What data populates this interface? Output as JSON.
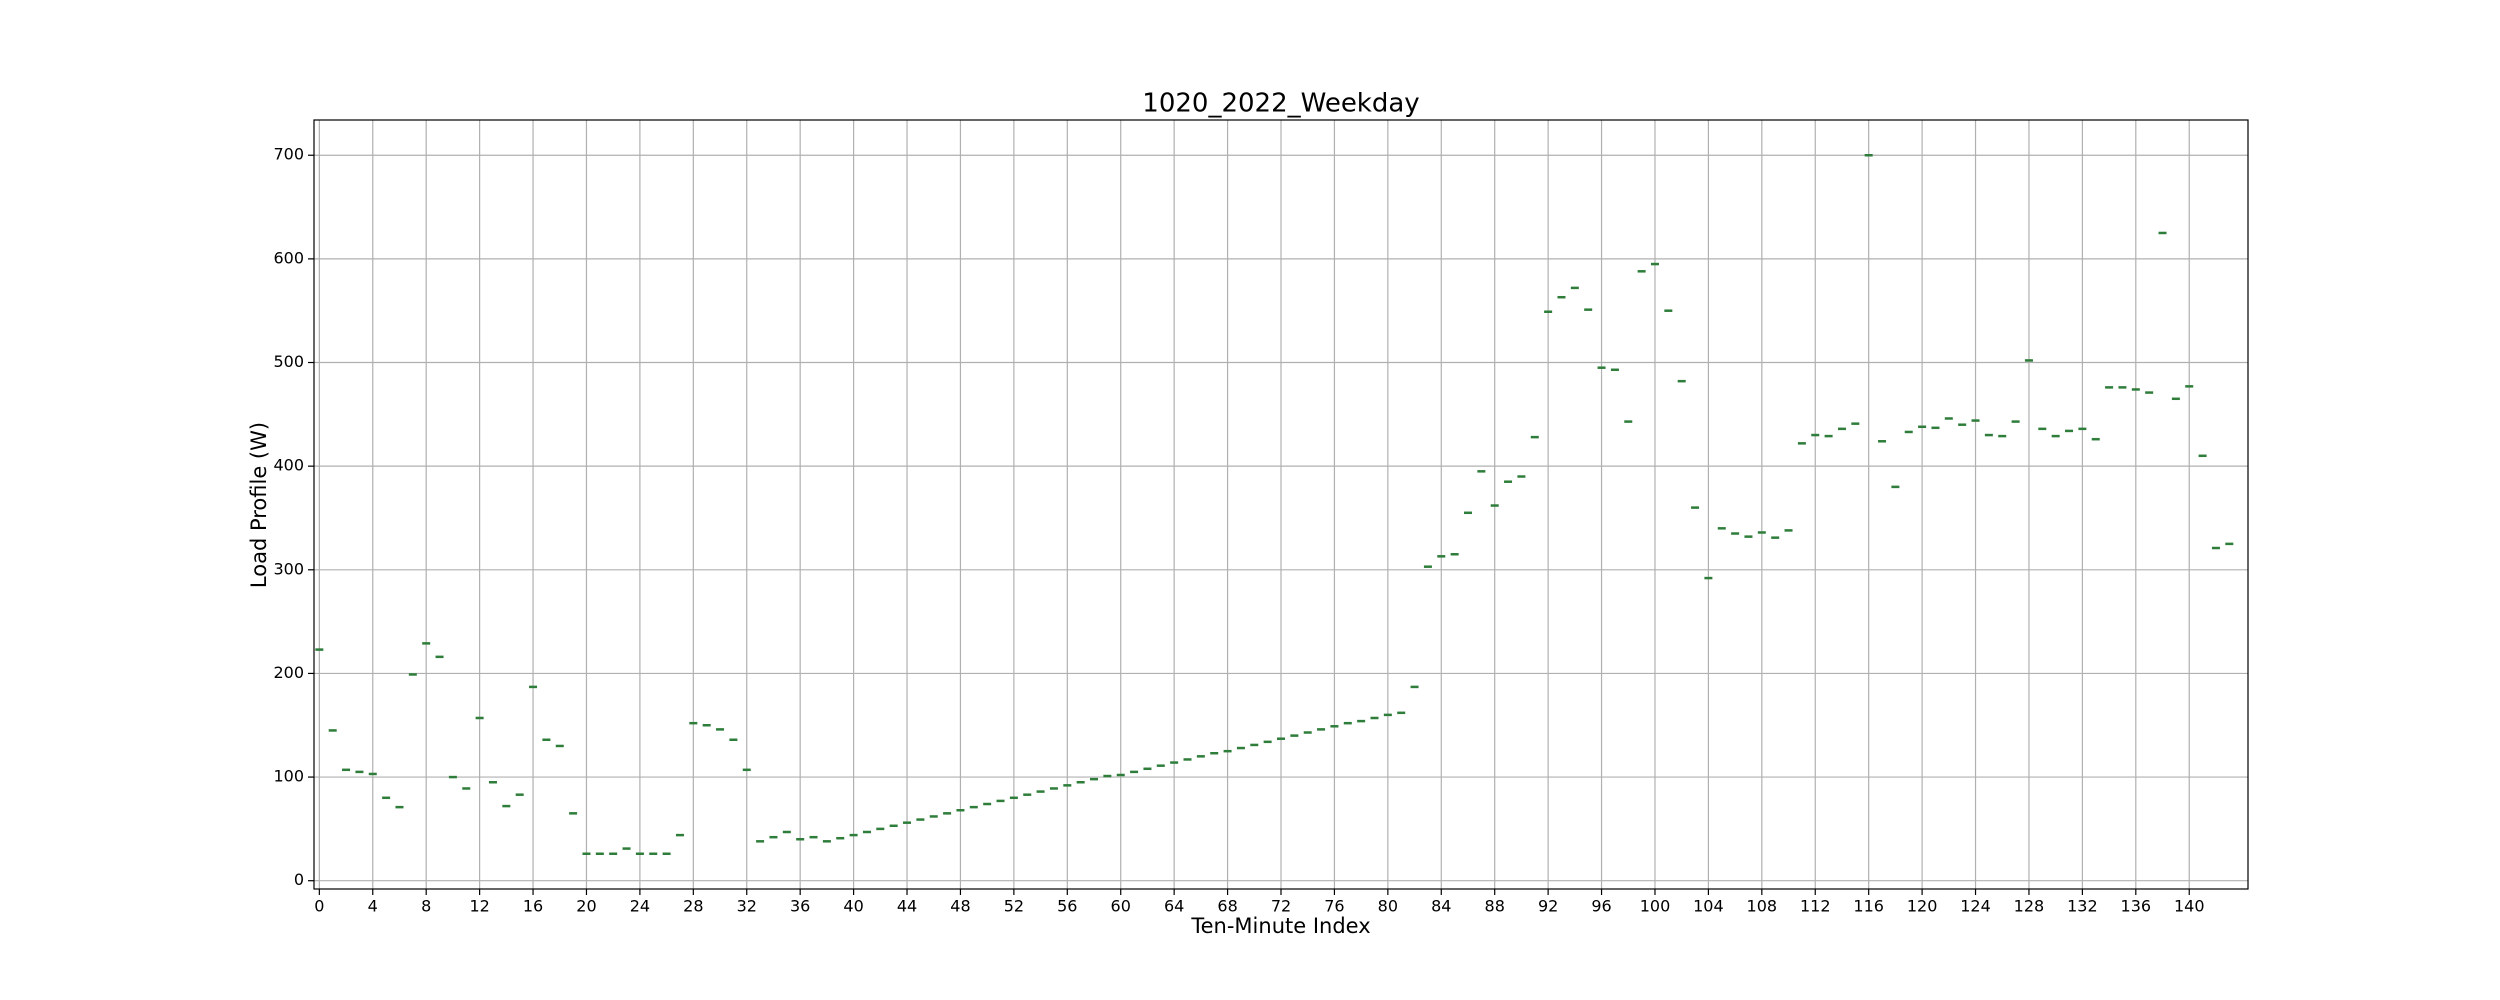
{
  "chart_data": {
    "type": "scatter",
    "title": "1020_2022_Weekday",
    "xlabel": "Ten-Minute Index",
    "ylabel": "Load Profile (W)",
    "x": [
      0,
      1,
      2,
      3,
      4,
      5,
      6,
      7,
      8,
      9,
      10,
      11,
      12,
      13,
      14,
      15,
      16,
      17,
      18,
      19,
      20,
      21,
      22,
      23,
      24,
      25,
      26,
      27,
      28,
      29,
      30,
      31,
      32,
      33,
      34,
      35,
      36,
      37,
      38,
      39,
      40,
      41,
      42,
      43,
      44,
      45,
      46,
      47,
      48,
      49,
      50,
      51,
      52,
      53,
      54,
      55,
      56,
      57,
      58,
      59,
      60,
      61,
      62,
      63,
      64,
      65,
      66,
      67,
      68,
      69,
      70,
      71,
      72,
      73,
      74,
      75,
      76,
      77,
      78,
      79,
      80,
      81,
      82,
      83,
      84,
      85,
      86,
      87,
      88,
      89,
      90,
      91,
      92,
      93,
      94,
      95,
      96,
      97,
      98,
      99,
      100,
      101,
      102,
      103,
      104,
      105,
      106,
      107,
      108,
      109,
      110,
      111,
      112,
      113,
      114,
      115,
      116,
      117,
      118,
      119,
      120,
      121,
      122,
      123,
      124,
      125,
      126,
      127,
      128,
      129,
      130,
      131,
      132,
      133,
      134,
      135,
      136,
      137,
      138,
      139,
      140,
      141,
      142,
      143
    ],
    "series": [
      {
        "name": "Load Profile",
        "color": "#2e7d3a",
        "values": [
          223,
          145,
          107,
          105,
          103,
          80,
          71,
          199,
          229,
          216,
          100,
          89,
          157,
          95,
          72,
          83,
          187,
          136,
          130,
          65,
          26,
          26,
          26,
          31,
          26,
          26,
          26,
          44,
          152,
          150,
          146,
          136,
          107,
          38,
          42,
          47,
          40,
          42,
          38,
          41,
          44,
          47,
          50,
          53,
          56,
          59,
          62,
          65,
          68,
          71,
          74,
          77,
          80,
          83,
          86,
          89,
          92,
          95,
          98,
          101,
          102,
          105,
          108,
          111,
          114,
          117,
          120,
          123,
          125,
          128,
          131,
          134,
          137,
          140,
          143,
          146,
          149,
          152,
          154,
          157,
          160,
          162,
          187,
          303,
          313,
          315,
          355,
          395,
          362,
          385,
          390,
          428,
          549,
          563,
          572,
          551,
          495,
          493,
          443,
          588,
          595,
          550,
          482,
          360,
          292,
          340,
          335,
          332,
          336,
          331,
          338,
          422,
          430,
          429,
          436,
          441,
          700,
          424,
          380,
          433,
          438,
          437,
          446,
          440,
          444,
          430,
          429,
          443,
          502,
          436,
          429,
          434,
          436,
          426,
          476,
          476,
          474,
          471,
          625,
          465,
          477,
          410,
          321,
          325
        ]
      }
    ],
    "xlim": [
      -0.4,
      144.4
    ],
    "ylim": [
      -8,
      734
    ],
    "xticks": [
      0,
      4,
      8,
      12,
      16,
      20,
      24,
      28,
      32,
      36,
      40,
      44,
      48,
      52,
      56,
      60,
      64,
      68,
      72,
      76,
      80,
      84,
      88,
      92,
      96,
      100,
      104,
      108,
      112,
      116,
      120,
      124,
      128,
      132,
      136,
      140
    ],
    "yticks": [
      0,
      100,
      200,
      300,
      400,
      500,
      600,
      700
    ],
    "grid": true
  }
}
